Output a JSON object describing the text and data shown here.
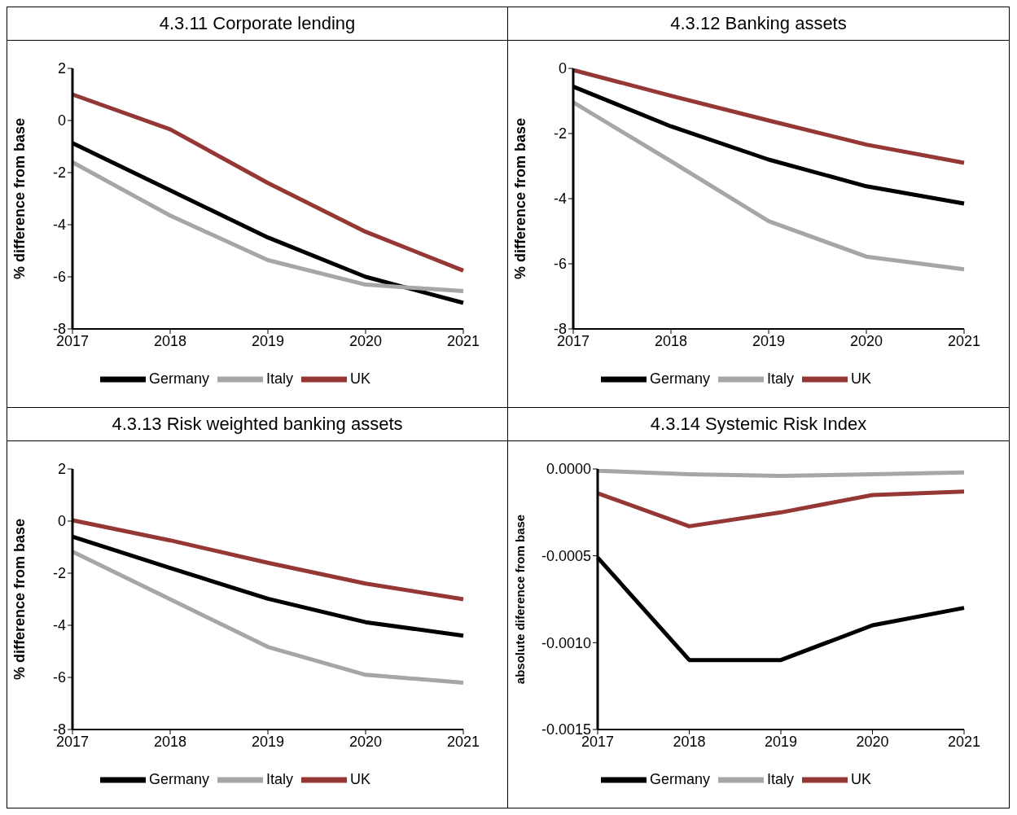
{
  "chart_data": [
    {
      "type": "line",
      "title": "4.3.11 Corporate lending",
      "ylabel": "% difference from base",
      "categories": [
        "2017",
        "2018",
        "2019",
        "2020",
        "2021"
      ],
      "ylim": [
        -8,
        2
      ],
      "yticks": [
        -8,
        -6,
        -4,
        -2,
        0,
        2
      ],
      "grid": false,
      "legend": "bottom",
      "marker": "none",
      "line_style": "solid",
      "series": [
        {
          "name": "Germany",
          "color": "#000000",
          "values": [
            -0.87,
            -2.68,
            -4.49,
            -6.0,
            -7.0
          ]
        },
        {
          "name": "Italy",
          "color": "#a6a6a6",
          "values": [
            -1.6,
            -3.65,
            -5.36,
            -6.3,
            -6.55
          ]
        },
        {
          "name": "UK",
          "color": "#953735",
          "values": [
            1.0,
            -0.34,
            -2.4,
            -4.27,
            -5.76
          ]
        }
      ]
    },
    {
      "type": "line",
      "title": "4.3.12 Banking assets",
      "ylabel": "% difference from base",
      "categories": [
        "2017",
        "2018",
        "2019",
        "2020",
        "2021"
      ],
      "ylim": [
        -8,
        0
      ],
      "yticks": [
        -8,
        -6,
        -4,
        -2,
        0
      ],
      "grid": false,
      "legend": "bottom",
      "marker": "none",
      "line_style": "solid",
      "series": [
        {
          "name": "Germany",
          "color": "#000000",
          "values": [
            -0.56,
            -1.78,
            -2.8,
            -3.62,
            -4.15
          ]
        },
        {
          "name": "Italy",
          "color": "#a6a6a6",
          "values": [
            -1.04,
            -2.85,
            -4.69,
            -5.78,
            -6.17
          ]
        },
        {
          "name": "UK",
          "color": "#953735",
          "values": [
            -0.05,
            -0.84,
            -1.6,
            -2.34,
            -2.9
          ]
        }
      ]
    },
    {
      "type": "line",
      "title": "4.3.13 Risk weighted banking assets",
      "ylabel": "% difference from base",
      "categories": [
        "2017",
        "2018",
        "2019",
        "2020",
        "2021"
      ],
      "ylim": [
        -8,
        2
      ],
      "yticks": [
        -8,
        -6,
        -4,
        -2,
        0,
        2
      ],
      "grid": false,
      "legend": "bottom",
      "marker": "none",
      "line_style": "solid",
      "series": [
        {
          "name": "Germany",
          "color": "#000000",
          "values": [
            -0.6,
            -1.8,
            -2.98,
            -3.88,
            -4.4
          ]
        },
        {
          "name": "Italy",
          "color": "#a6a6a6",
          "values": [
            -1.17,
            -3.0,
            -4.83,
            -5.9,
            -6.2
          ]
        },
        {
          "name": "UK",
          "color": "#953735",
          "values": [
            0.03,
            -0.74,
            -1.6,
            -2.4,
            -3.0
          ]
        }
      ]
    },
    {
      "type": "line",
      "title": "4.3.14 Systemic Risk Index",
      "ylabel": "absolute diference from base",
      "categories": [
        "2017",
        "2018",
        "2019",
        "2020",
        "2021"
      ],
      "ylim": [
        -0.0015,
        0
      ],
      "yticks": [
        {
          "value": -0.0015,
          "label": "-0.0015"
        },
        {
          "value": -0.001,
          "label": "-0.0010"
        },
        {
          "value": -0.0005,
          "label": "-0.0005"
        },
        {
          "value": 0,
          "label": "0.0000"
        }
      ],
      "grid": false,
      "legend": "bottom",
      "marker": "none",
      "line_style": "solid",
      "series": [
        {
          "name": "Germany",
          "color": "#000000",
          "values": [
            -0.00051,
            -0.0011,
            -0.0011,
            -0.0009,
            -0.0008
          ]
        },
        {
          "name": "Italy",
          "color": "#a6a6a6",
          "values": [
            -1e-05,
            -3e-05,
            -4e-05,
            -3e-05,
            -2e-05
          ]
        },
        {
          "name": "UK",
          "color": "#953735",
          "values": [
            -0.00014,
            -0.00033,
            -0.00025,
            -0.00015,
            -0.00013
          ]
        }
      ]
    }
  ]
}
